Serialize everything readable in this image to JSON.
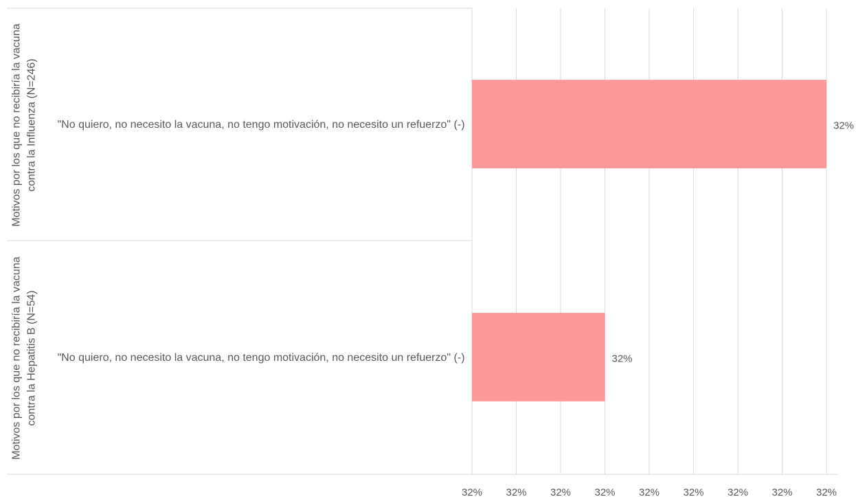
{
  "chart_data": {
    "type": "bar",
    "orientation": "horizontal",
    "groups": [
      "Motivos por los que no recibiría la vacuna contra la Influenza (N=246)",
      "Motivos por los que no recibiría la vacuna contra la Hepatitis B  (N=54)"
    ],
    "categories": [
      "\"No quiero, no necesito la vacuna, no tengo motivación, no necesito un refuerzo\" (-)",
      "\"No quiero, no necesito la vacuna, no tengo motivación, no necesito un refuerzo\" (-)"
    ],
    "values": [
      32.4,
      31.9
    ],
    "value_labels": [
      "32%",
      "32%"
    ],
    "color": "#ff9999",
    "xlim": [
      31.6,
      32.4
    ],
    "xticks": [
      {
        "value": 31.6,
        "label": "32%"
      },
      {
        "value": 31.7,
        "label": "32%"
      },
      {
        "value": 31.8,
        "label": "32%"
      },
      {
        "value": 31.9,
        "label": "32%"
      },
      {
        "value": 32.0,
        "label": "32%"
      },
      {
        "value": 32.1,
        "label": "32%"
      },
      {
        "value": 32.2,
        "label": "32%"
      },
      {
        "value": 32.3,
        "label": "32%"
      },
      {
        "value": 32.4,
        "label": "32%"
      }
    ],
    "grid": true
  }
}
